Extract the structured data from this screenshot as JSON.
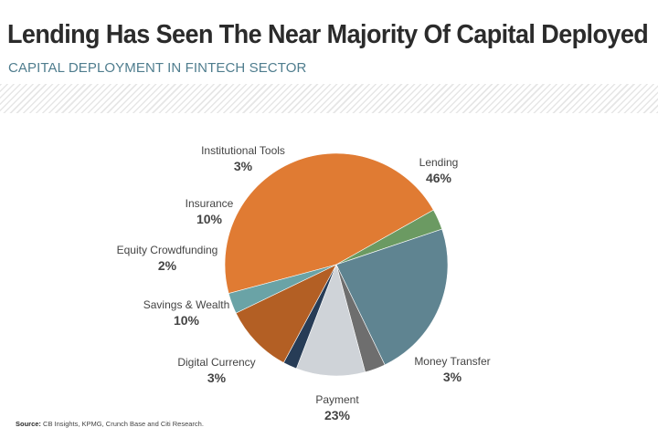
{
  "header": {
    "title": "Lending Has Seen The Near Majority Of Capital Deployed",
    "subtitle": "CAPITAL DEPLOYMENT IN FINTECH SECTOR"
  },
  "chart_data": {
    "type": "pie",
    "title": "Lending Has Seen The Near Majority Of Capital Deployed",
    "subtitle": "CAPITAL DEPLOYMENT IN FINTECH SECTOR",
    "unit": "%",
    "slices": [
      {
        "label": "Lending",
        "value": 46,
        "display": "46%",
        "color": "#e07b33"
      },
      {
        "label": "Money Transfer",
        "value": 3,
        "display": "3%",
        "color": "#6b9a62"
      },
      {
        "label": "Payment",
        "value": 23,
        "display": "23%",
        "color": "#5f8491"
      },
      {
        "label": "Digital Currency",
        "value": 3,
        "display": "3%",
        "color": "#6e6e6e"
      },
      {
        "label": "Savings & Wealth",
        "value": 10,
        "display": "10%",
        "color": "#cfd3d8"
      },
      {
        "label": "Equity Crowdfunding",
        "value": 2,
        "display": "2%",
        "color": "#273c56"
      },
      {
        "label": "Insurance",
        "value": 10,
        "display": "10%",
        "color": "#b35f24"
      },
      {
        "label": "Institutional Tools",
        "value": 3,
        "display": "3%",
        "color": "#6aa3a6"
      }
    ]
  },
  "source": {
    "prefix": "Source:",
    "text": " CB Insights, KPMG, Crunch Base and Citi Research."
  }
}
